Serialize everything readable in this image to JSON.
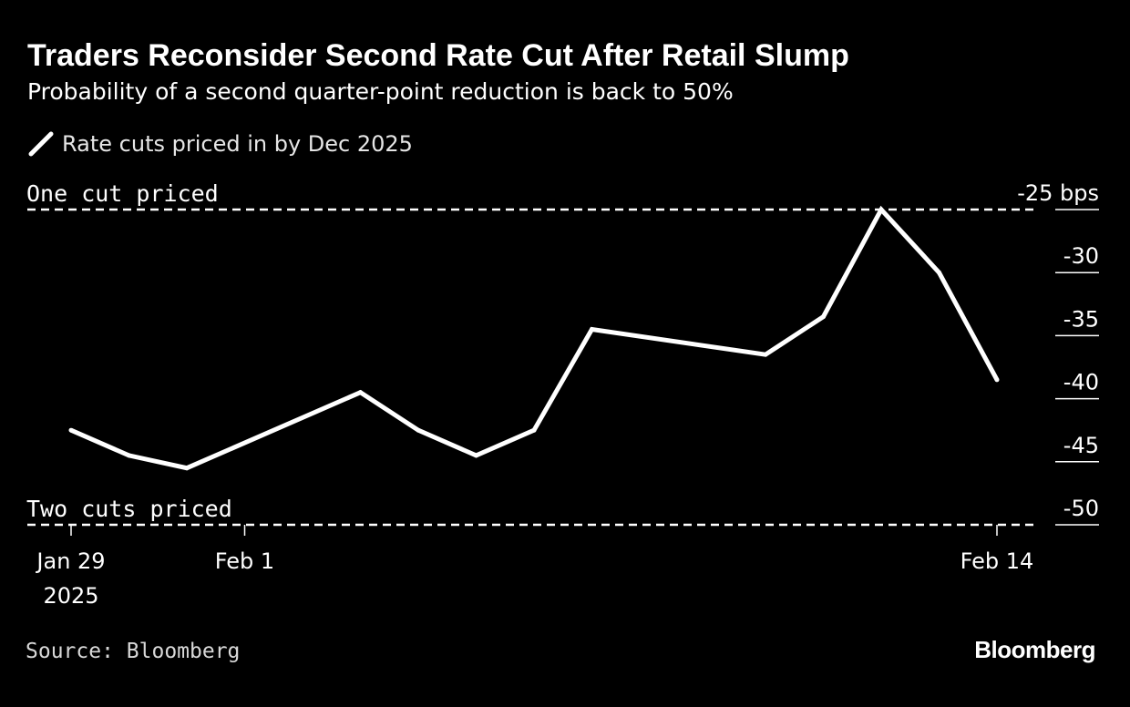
{
  "header": {
    "title": "Traders Reconsider Second Rate Cut After Retail Slump",
    "subtitle": "Probability of a second quarter-point reduction is back to 50%"
  },
  "legend": {
    "label": "Rate cuts priced in by Dec 2025",
    "icon": "line-swatch-icon"
  },
  "footer": {
    "source": "Source: Bloomberg",
    "logo": "Bloomberg"
  },
  "colors": {
    "background": "#000000",
    "line": "#ffffff",
    "text": "#ffffff"
  },
  "chart_data": {
    "type": "line",
    "title": "Traders Reconsider Second Rate Cut After Retail Slump",
    "subtitle": "Probability of a second quarter-point reduction is back to 50%",
    "series": [
      {
        "name": "Rate cuts priced in by Dec 2025",
        "points": [
          {
            "x": "2025-01-29",
            "y": -42.5
          },
          {
            "x": "2025-01-30",
            "y": -44.5
          },
          {
            "x": "2025-01-31",
            "y": -45.5
          },
          {
            "x": "2025-02-03",
            "y": -39.5
          },
          {
            "x": "2025-02-04",
            "y": -42.5
          },
          {
            "x": "2025-02-05",
            "y": -44.5
          },
          {
            "x": "2025-02-06",
            "y": -42.5
          },
          {
            "x": "2025-02-07",
            "y": -34.5
          },
          {
            "x": "2025-02-10",
            "y": -36.5
          },
          {
            "x": "2025-02-11",
            "y": -33.5
          },
          {
            "x": "2025-02-12",
            "y": -25.0
          },
          {
            "x": "2025-02-13",
            "y": -30.0
          },
          {
            "x": "2025-02-14",
            "y": -38.5
          }
        ]
      }
    ],
    "x_ticks": [
      {
        "x": "2025-01-29",
        "label": "Jan 29",
        "sublabel": "2025"
      },
      {
        "x": "2025-02-01",
        "label": "Feb 1",
        "sublabel": ""
      },
      {
        "x": "2025-02-14",
        "label": "Feb 14",
        "sublabel": ""
      }
    ],
    "xlim": [
      "2025-01-29",
      "2025-02-14"
    ],
    "y_ticks": [
      -25,
      -30,
      -35,
      -40,
      -45,
      -50
    ],
    "y_tick_labels": [
      "-25",
      "-30",
      "-35",
      "-40",
      "-45",
      "-50"
    ],
    "y_unit": "bps",
    "ylim": [
      -50,
      -25
    ],
    "reference_lines": [
      {
        "y": -25,
        "label": "One cut priced",
        "style": "dashed"
      },
      {
        "y": -50,
        "label": "Two cuts priced",
        "style": "dashed"
      }
    ],
    "grid": false,
    "legend_position": "top-left"
  }
}
